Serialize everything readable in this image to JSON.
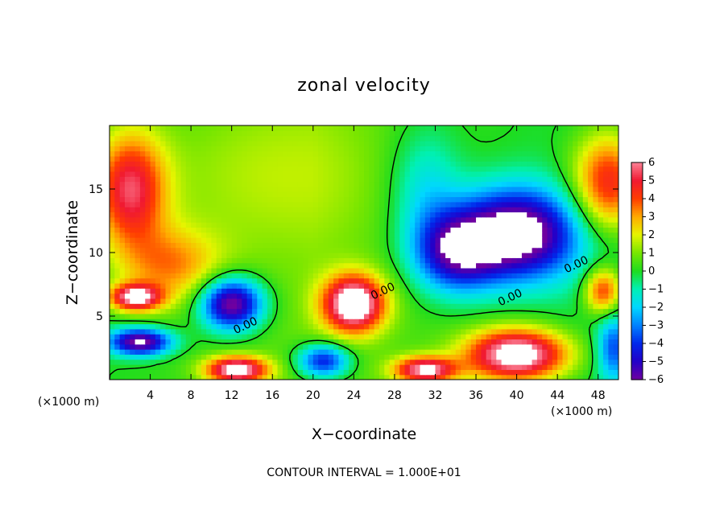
{
  "chart_data": {
    "type": "heatmap",
    "title": "zonal velocity",
    "xlabel": "X−coordinate",
    "ylabel": "Z−coordinate",
    "x_unit_left": "(×1000 m)",
    "x_unit_right": "(×1000 m)",
    "footer": "CONTOUR INTERVAL = 1.000E+01",
    "xlim": [
      0,
      50
    ],
    "ylim": [
      0,
      20
    ],
    "x_ticks": [
      4,
      8,
      12,
      16,
      20,
      24,
      28,
      32,
      36,
      40,
      44,
      48
    ],
    "y_ticks": [
      5,
      10,
      15
    ],
    "colorbar": {
      "min": -6,
      "max": 6,
      "ticks": [
        6,
        5,
        4,
        3,
        2,
        1,
        0,
        -1,
        -2,
        -3,
        -4,
        -5,
        -6
      ],
      "tick_labels": [
        "6",
        "5",
        "4",
        "3",
        "2",
        "1",
        "0",
        "−1",
        "−2",
        "−3",
        "−4",
        "−5",
        "−6"
      ]
    },
    "contour_labels": [
      {
        "text": "0.00",
        "x": 13.5,
        "z": 4.0
      },
      {
        "text": "0.00",
        "x": 27.0,
        "z": 6.7
      },
      {
        "text": "0.00",
        "x": 39.5,
        "z": 6.2
      },
      {
        "text": "0.00",
        "x": 46.0,
        "z": 8.8
      }
    ],
    "features": [
      {
        "x": 2.0,
        "z": 15.0,
        "value": 5.2,
        "rx": 3.5,
        "rz": 4.5
      },
      {
        "x": 49.0,
        "z": 15.5,
        "value": 5.0,
        "rx": 3.5,
        "rz": 4.0
      },
      {
        "x": 6.0,
        "z": 9.0,
        "value": 3.0,
        "rx": 5.0,
        "rz": 3.0
      },
      {
        "x": 15.0,
        "z": 16.0,
        "value": 1.0,
        "rx": 12.0,
        "rz": 6.0
      },
      {
        "x": 40.0,
        "z": 11.5,
        "value": -7.5,
        "rx": 6.0,
        "rz": 3.5
      },
      {
        "x": 34.0,
        "z": 10.0,
        "value": -5.0,
        "rx": 4.0,
        "rz": 3.0
      },
      {
        "x": 31.0,
        "z": 15.0,
        "value": -2.0,
        "rx": 3.5,
        "rz": 5.0
      },
      {
        "x": 12.0,
        "z": 6.0,
        "value": -7.0,
        "rx": 3.0,
        "rz": 2.0
      },
      {
        "x": 24.0,
        "z": 6.0,
        "value": 7.5,
        "rx": 3.0,
        "rz": 2.2
      },
      {
        "x": 3.0,
        "z": 3.0,
        "value": -7.0,
        "rx": 3.0,
        "rz": 1.0
      },
      {
        "x": 2.5,
        "z": 6.5,
        "value": 6.5,
        "rx": 2.5,
        "rz": 1.0
      },
      {
        "x": 12.5,
        "z": 0.8,
        "value": 7.0,
        "rx": 3.0,
        "rz": 1.0
      },
      {
        "x": 21.0,
        "z": 1.5,
        "value": -5.0,
        "rx": 2.5,
        "rz": 1.3
      },
      {
        "x": 40.0,
        "z": 2.0,
        "value": 7.5,
        "rx": 5.0,
        "rz": 2.0
      },
      {
        "x": 31.0,
        "z": 0.8,
        "value": 6.5,
        "rx": 3.0,
        "rz": 1.0
      },
      {
        "x": 48.5,
        "z": 7.0,
        "value": 4.5,
        "rx": 1.8,
        "rz": 1.8
      },
      {
        "x": 49.5,
        "z": 2.5,
        "value": -3.5,
        "rx": 1.5,
        "rz": 2.5
      }
    ]
  }
}
